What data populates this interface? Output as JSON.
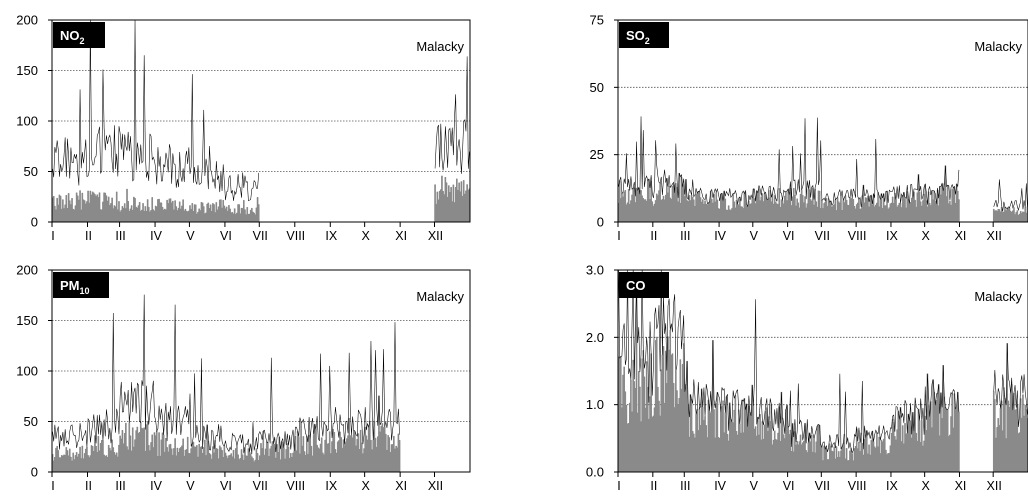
{
  "chart_data": [
    {
      "type": "area",
      "pollutant": "NO",
      "pollutant_sub": "2",
      "station": "Malacky",
      "ylim": [
        0,
        200
      ],
      "yticks": [
        "0",
        "50",
        "100",
        "150",
        "200"
      ],
      "months": [
        "I",
        "II",
        "III",
        "IV",
        "V",
        "VI",
        "VII",
        "VIII",
        "IX",
        "X",
        "XI",
        "XII"
      ],
      "mean_monthly": [
        20,
        22,
        18,
        16,
        14,
        12,
        null,
        null,
        null,
        null,
        null,
        32
      ],
      "max_monthly": [
        60,
        70,
        65,
        55,
        45,
        35,
        null,
        null,
        null,
        null,
        null,
        75
      ],
      "series_colors": {
        "mean": "#8a8a8a",
        "max": "#000000"
      }
    },
    {
      "type": "area",
      "pollutant": "SO",
      "pollutant_sub": "2",
      "station": "Malacky",
      "ylim": [
        0,
        75
      ],
      "yticks": [
        "0",
        "25",
        "50",
        "75"
      ],
      "months": [
        "I",
        "II",
        "III",
        "IV",
        "V",
        "VI",
        "VII",
        "VIII",
        "IX",
        "X",
        "XI",
        "XII"
      ],
      "mean_monthly": [
        11,
        10,
        8,
        8,
        9,
        9,
        7,
        8,
        9,
        10,
        null,
        4
      ],
      "max_monthly": [
        13,
        14,
        9,
        9,
        10,
        12,
        9,
        9,
        10,
        10,
        null,
        6
      ],
      "series_colors": {
        "mean": "#8a8a8a",
        "max": "#000000"
      }
    },
    {
      "type": "area",
      "pollutant": "PM",
      "pollutant_sub": "10",
      "station": "Malacky",
      "ylim": [
        0,
        200
      ],
      "yticks": [
        "0",
        "50",
        "100",
        "150",
        "200"
      ],
      "months": [
        "I",
        "II",
        "III",
        "IV",
        "V",
        "VI",
        "VII",
        "VIII",
        "IX",
        "X",
        "XI",
        "XII"
      ],
      "mean_monthly": [
        18,
        25,
        35,
        28,
        22,
        18,
        22,
        28,
        30,
        35,
        null,
        null
      ],
      "max_monthly": [
        35,
        45,
        65,
        50,
        35,
        28,
        30,
        40,
        45,
        50,
        null,
        null
      ],
      "series_colors": {
        "mean": "#8a8a8a",
        "max": "#000000"
      }
    },
    {
      "type": "area",
      "pollutant": "CO",
      "pollutant_sub": "",
      "station": "Malacky",
      "ylim": [
        0,
        3
      ],
      "yticks": [
        "0.0",
        "1.0",
        "2.0",
        "3.0"
      ],
      "months": [
        "I",
        "II",
        "III",
        "IV",
        "V",
        "VI",
        "VII",
        "VIII",
        "IX",
        "X",
        "XI",
        "XII"
      ],
      "mean_monthly": [
        1.3,
        1.5,
        0.9,
        0.8,
        0.7,
        0.5,
        0.3,
        0.45,
        0.7,
        0.95,
        null,
        0.9
      ],
      "max_monthly": [
        1.6,
        1.9,
        1.0,
        0.9,
        0.8,
        0.6,
        0.4,
        0.5,
        0.8,
        1.0,
        null,
        1.1
      ],
      "series_colors": {
        "mean": "#8a8a8a",
        "max": "#000000"
      }
    }
  ]
}
